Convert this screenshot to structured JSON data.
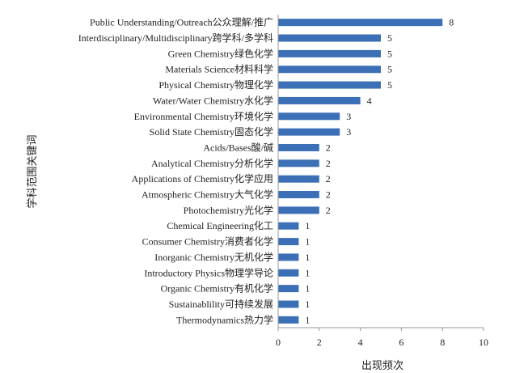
{
  "chart_data": {
    "type": "bar",
    "orientation": "horizontal",
    "title": "",
    "xlabel": "出现频次",
    "ylabel": "学科范围关键词",
    "xlim": [
      0,
      10
    ],
    "xticks": [
      "0",
      "2",
      "4",
      "6",
      "8",
      "10"
    ],
    "grid": false,
    "bar_color": "#3b6fb6",
    "categories": [
      "Public Understanding/Outreach公众理解/推广",
      "Interdisciplinary/Multidisciplinary跨学科/多学科",
      "Green Chemistry绿色化学",
      "Materials Science材料科学",
      "Physical Chemistry物理化学",
      "Water/Water Chemistry水化学",
      "Environmental Chemistry环境化学",
      "Solid State Chemistry固态化学",
      "Acids/Bases酸/碱",
      "Analytical Chemistry分析化学",
      "Applications of Chemistry化学应用",
      "Atmospheric Chemistry大气化学",
      "Photochemistry光化学",
      "Chemical Engineering化工",
      "Consumer Chemistry消费者化学",
      "Inorganic Chemistry无机化学",
      "Introductory Physics物理学导论",
      "Organic Chemistry有机化学",
      "Sustainablility可持续发展",
      "Thermodynamics热力学"
    ],
    "values": [
      8,
      5,
      5,
      5,
      5,
      4,
      3,
      3,
      2,
      2,
      2,
      2,
      2,
      1,
      1,
      1,
      1,
      1,
      1,
      1
    ]
  }
}
